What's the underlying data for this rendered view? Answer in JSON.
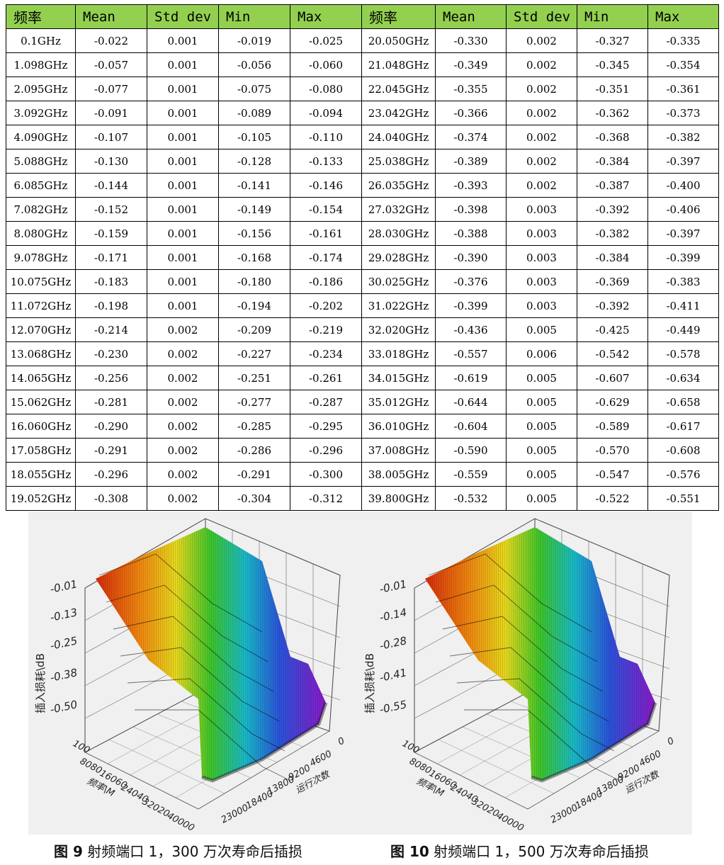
{
  "table": {
    "headers": [
      "频率",
      "Mean",
      "Std dev",
      "Min",
      "Max",
      "频率",
      "Mean",
      "Std dev",
      "Min",
      "Max"
    ],
    "rows": [
      [
        "0.1GHz",
        "-0.022",
        "0.001",
        "-0.019",
        "-0.025",
        "20.050GHz",
        "-0.330",
        "0.002",
        "-0.327",
        "-0.335"
      ],
      [
        "1.098GHz",
        "-0.057",
        "0.001",
        "-0.056",
        "-0.060",
        "21.048GHz",
        "-0.349",
        "0.002",
        "-0.345",
        "-0.354"
      ],
      [
        "2.095GHz",
        "-0.077",
        "0.001",
        "-0.075",
        "-0.080",
        "22.045GHz",
        "-0.355",
        "0.002",
        "-0.351",
        "-0.361"
      ],
      [
        "3.092GHz",
        "-0.091",
        "0.001",
        "-0.089",
        "-0.094",
        "23.042GHz",
        "-0.366",
        "0.002",
        "-0.362",
        "-0.373"
      ],
      [
        "4.090GHz",
        "-0.107",
        "0.001",
        "-0.105",
        "-0.110",
        "24.040GHz",
        "-0.374",
        "0.002",
        "-0.368",
        "-0.382"
      ],
      [
        "5.088GHz",
        "-0.130",
        "0.001",
        "-0.128",
        "-0.133",
        "25.038GHz",
        "-0.389",
        "0.002",
        "-0.384",
        "-0.397"
      ],
      [
        "6.085GHz",
        "-0.144",
        "0.001",
        "-0.141",
        "-0.146",
        "26.035GHz",
        "-0.393",
        "0.002",
        "-0.387",
        "-0.400"
      ],
      [
        "7.082GHz",
        "-0.152",
        "0.001",
        "-0.149",
        "-0.154",
        "27.032GHz",
        "-0.398",
        "0.003",
        "-0.392",
        "-0.406"
      ],
      [
        "8.080GHz",
        "-0.159",
        "0.001",
        "-0.156",
        "-0.161",
        "28.030GHz",
        "-0.388",
        "0.003",
        "-0.382",
        "-0.397"
      ],
      [
        "9.078GHz",
        "-0.171",
        "0.001",
        "-0.168",
        "-0.174",
        "29.028GHz",
        "-0.390",
        "0.003",
        "-0.384",
        "-0.399"
      ],
      [
        "10.075GHz",
        "-0.183",
        "0.001",
        "-0.180",
        "-0.186",
        "30.025GHz",
        "-0.376",
        "0.003",
        "-0.369",
        "-0.383"
      ],
      [
        "11.072GHz",
        "-0.198",
        "0.001",
        "-0.194",
        "-0.202",
        "31.022GHz",
        "-0.399",
        "0.003",
        "-0.392",
        "-0.411"
      ],
      [
        "12.070GHz",
        "-0.214",
        "0.002",
        "-0.209",
        "-0.219",
        "32.020GHz",
        "-0.436",
        "0.005",
        "-0.425",
        "-0.449"
      ],
      [
        "13.068GHz",
        "-0.230",
        "0.002",
        "-0.227",
        "-0.234",
        "33.018GHz",
        "-0.557",
        "0.006",
        "-0.542",
        "-0.578"
      ],
      [
        "14.065GHz",
        "-0.256",
        "0.002",
        "-0.251",
        "-0.261",
        "34.015GHz",
        "-0.619",
        "0.005",
        "-0.607",
        "-0.634"
      ],
      [
        "15.062GHz",
        "-0.281",
        "0.002",
        "-0.277",
        "-0.287",
        "35.012GHz",
        "-0.644",
        "0.005",
        "-0.629",
        "-0.658"
      ],
      [
        "16.060GHz",
        "-0.290",
        "0.002",
        "-0.285",
        "-0.295",
        "36.010GHz",
        "-0.604",
        "0.005",
        "-0.589",
        "-0.617"
      ],
      [
        "17.058GHz",
        "-0.291",
        "0.002",
        "-0.286",
        "-0.296",
        "37.008GHz",
        "-0.590",
        "0.005",
        "-0.570",
        "-0.608"
      ],
      [
        "18.055GHz",
        "-0.296",
        "0.002",
        "-0.291",
        "-0.300",
        "38.005GHz",
        "-0.559",
        "0.005",
        "-0.547",
        "-0.576"
      ],
      [
        "19.052GHz",
        "-0.308",
        "0.002",
        "-0.304",
        "-0.312",
        "39.800GHz",
        "-0.532",
        "0.005",
        "-0.522",
        "-0.551"
      ]
    ],
    "header_color": "#93d050"
  },
  "figures": [
    {
      "z_label": "插入损耗\\dB",
      "z_ticks": [
        "-0.01",
        "-0.13",
        "-0.25",
        "-0.38",
        "-0.50"
      ],
      "freq_label": "频率\\M",
      "freq_ticks": [
        "100",
        "8080",
        "16060",
        "24040",
        "32020",
        "40000"
      ],
      "count_label": "运行次数",
      "count_ticks": [
        "0",
        "4600",
        "9200",
        "13800",
        "18400",
        "23000"
      ],
      "caption_num": "图 9",
      "caption_text": " 射频端口 1，300 万次寿命后插损"
    },
    {
      "z_label": "插入损耗\\dB",
      "z_ticks": [
        "-0.01",
        "-0.14",
        "-0.28",
        "-0.41",
        "-0.55"
      ],
      "freq_label": "频率\\M",
      "freq_ticks": [
        "100",
        "8080",
        "16060",
        "24040",
        "32020",
        "40000"
      ],
      "count_label": "运行次数",
      "count_ticks": [
        "0",
        "4600",
        "9200",
        "13800",
        "18400",
        "23000"
      ],
      "caption_num": "图 10",
      "caption_text": " 射频端口 1，500 万次寿命后插损"
    }
  ]
}
